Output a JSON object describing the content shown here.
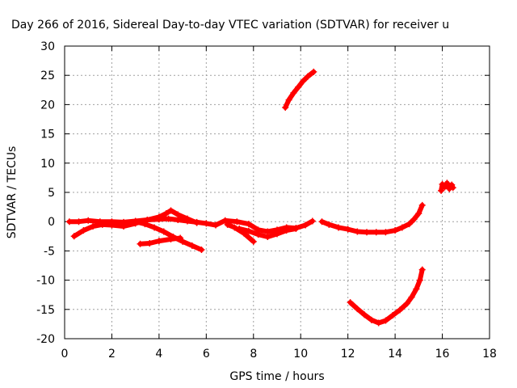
{
  "chart_data": {
    "type": "scatter",
    "title": "Day 266 of 2016, Sidereal Day-to-day VTEC variation (SDTVAR) for receiver u",
    "xlabel": "GPS time / hours",
    "ylabel": "SDTVAR / TECUs",
    "xlim": [
      0,
      18
    ],
    "ylim": [
      -20,
      30
    ],
    "x_ticks": [
      "0",
      "2",
      "4",
      "6",
      "8",
      "10",
      "12",
      "14",
      "16",
      "18"
    ],
    "y_ticks": [
      "30",
      "25",
      "20",
      "15",
      "10",
      "5",
      "0",
      "-5",
      "-10",
      "-15",
      "-20"
    ],
    "grid": true,
    "marker_color": "#ff0000",
    "marker": "plus",
    "series": [
      {
        "points": [
          [
            0.2,
            0.0
          ],
          [
            0.6,
            0.0
          ],
          [
            1.0,
            0.2
          ],
          [
            1.5,
            0.0
          ],
          [
            2.0,
            0.0
          ],
          [
            2.5,
            -0.1
          ],
          [
            3.0,
            0.1
          ],
          [
            3.5,
            0.3
          ],
          [
            4.0,
            0.4
          ],
          [
            4.4,
            0.5
          ],
          [
            4.8,
            0.3
          ],
          [
            5.2,
            0.1
          ],
          [
            5.6,
            -0.1
          ],
          [
            6.0,
            -0.3
          ],
          [
            6.4,
            -0.6
          ],
          [
            6.8,
            0.2
          ],
          [
            7.3,
            0.0
          ],
          [
            7.8,
            -0.4
          ],
          [
            8.2,
            -1.4
          ],
          [
            8.6,
            -1.7
          ],
          [
            9.0,
            -1.4
          ],
          [
            9.4,
            -1.0
          ],
          [
            9.8,
            -1.1
          ],
          [
            10.2,
            -0.6
          ],
          [
            10.5,
            0.1
          ]
        ]
      },
      {
        "points": [
          [
            0.4,
            -2.5
          ],
          [
            0.8,
            -1.5
          ],
          [
            1.2,
            -0.8
          ],
          [
            1.6,
            -0.5
          ],
          [
            2.0,
            -0.6
          ],
          [
            2.5,
            -0.8
          ],
          [
            3.0,
            -0.3
          ],
          [
            3.5,
            0.3
          ],
          [
            4.0,
            0.8
          ],
          [
            4.3,
            1.4
          ],
          [
            4.5,
            1.9
          ],
          [
            4.8,
            1.2
          ],
          [
            5.2,
            0.5
          ],
          [
            5.6,
            -0.2
          ]
        ]
      },
      {
        "points": [
          [
            3.0,
            0.0
          ],
          [
            3.4,
            -0.4
          ],
          [
            3.8,
            -1.0
          ],
          [
            4.2,
            -1.7
          ],
          [
            4.6,
            -2.6
          ],
          [
            5.0,
            -3.4
          ],
          [
            5.4,
            -4.1
          ],
          [
            5.8,
            -4.8
          ]
        ]
      },
      {
        "points": [
          [
            3.2,
            -3.8
          ],
          [
            3.6,
            -3.7
          ],
          [
            4.0,
            -3.3
          ],
          [
            4.5,
            -3.0
          ],
          [
            4.9,
            -2.8
          ]
        ]
      },
      {
        "points": [
          [
            6.9,
            -0.5
          ],
          [
            7.2,
            -1.0
          ],
          [
            7.6,
            -2.0
          ],
          [
            8.0,
            -3.4
          ]
        ]
      },
      {
        "points": [
          [
            7.4,
            -1.2
          ],
          [
            7.8,
            -1.6
          ],
          [
            8.2,
            -2.2
          ],
          [
            8.6,
            -2.6
          ],
          [
            9.0,
            -2.1
          ],
          [
            9.4,
            -1.5
          ],
          [
            9.8,
            -1.2
          ]
        ]
      },
      {
        "points": [
          [
            9.35,
            19.5
          ],
          [
            9.5,
            20.8
          ],
          [
            9.7,
            22.0
          ],
          [
            9.9,
            23.0
          ],
          [
            10.1,
            24.0
          ],
          [
            10.3,
            24.8
          ],
          [
            10.55,
            25.6
          ]
        ]
      },
      {
        "points": [
          [
            10.9,
            0.0
          ],
          [
            11.2,
            -0.5
          ],
          [
            11.6,
            -1.0
          ],
          [
            12.0,
            -1.3
          ],
          [
            12.4,
            -1.7
          ],
          [
            12.8,
            -1.8
          ],
          [
            13.2,
            -1.8
          ],
          [
            13.6,
            -1.8
          ],
          [
            14.0,
            -1.5
          ],
          [
            14.3,
            -1.0
          ],
          [
            14.6,
            -0.4
          ],
          [
            14.8,
            0.4
          ],
          [
            15.0,
            1.4
          ],
          [
            15.15,
            2.8
          ]
        ]
      },
      {
        "points": [
          [
            12.1,
            -13.8
          ],
          [
            12.4,
            -14.9
          ],
          [
            12.7,
            -15.9
          ],
          [
            13.0,
            -16.8
          ],
          [
            13.3,
            -17.3
          ],
          [
            13.6,
            -16.9
          ],
          [
            13.9,
            -16.0
          ],
          [
            14.2,
            -15.1
          ],
          [
            14.5,
            -14.0
          ],
          [
            14.7,
            -12.9
          ],
          [
            14.9,
            -11.5
          ],
          [
            15.05,
            -10.0
          ],
          [
            15.15,
            -8.2
          ]
        ]
      },
      {
        "points": [
          [
            15.95,
            5.3
          ],
          [
            16.0,
            6.4
          ],
          [
            16.1,
            5.9
          ],
          [
            16.2,
            6.6
          ],
          [
            16.3,
            5.6
          ],
          [
            16.4,
            6.3
          ],
          [
            16.45,
            5.8
          ]
        ]
      }
    ]
  }
}
